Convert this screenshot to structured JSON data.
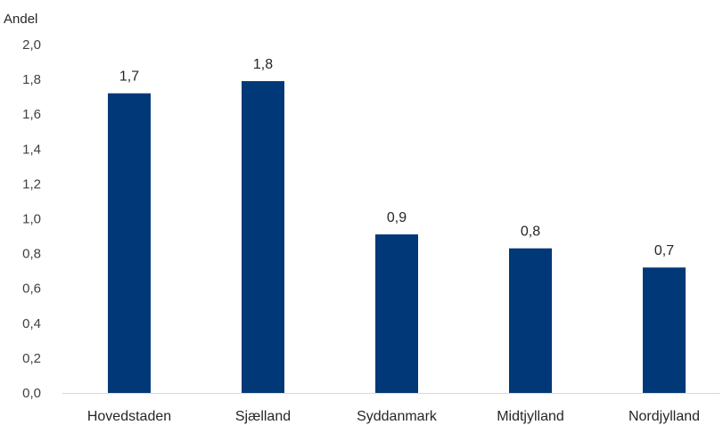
{
  "chart_data": {
    "type": "bar",
    "ylabel": "Andel",
    "categories": [
      "Hovedstaden",
      "Sjælland",
      "Syddanmark",
      "Midtjylland",
      "Nordjylland"
    ],
    "values": [
      1.72,
      1.79,
      0.91,
      0.83,
      0.72
    ],
    "data_labels": [
      "1,7",
      "1,8",
      "0,9",
      "0,8",
      "0,7"
    ],
    "yticks": [
      "0,0",
      "0,2",
      "0,4",
      "0,6",
      "0,8",
      "1,0",
      "1,2",
      "1,4",
      "1,6",
      "1,8",
      "2,0"
    ],
    "ylim": [
      0,
      2.0
    ],
    "grid": false,
    "colors": {
      "bar": "#003878",
      "axis": "#d9d9d9"
    }
  }
}
